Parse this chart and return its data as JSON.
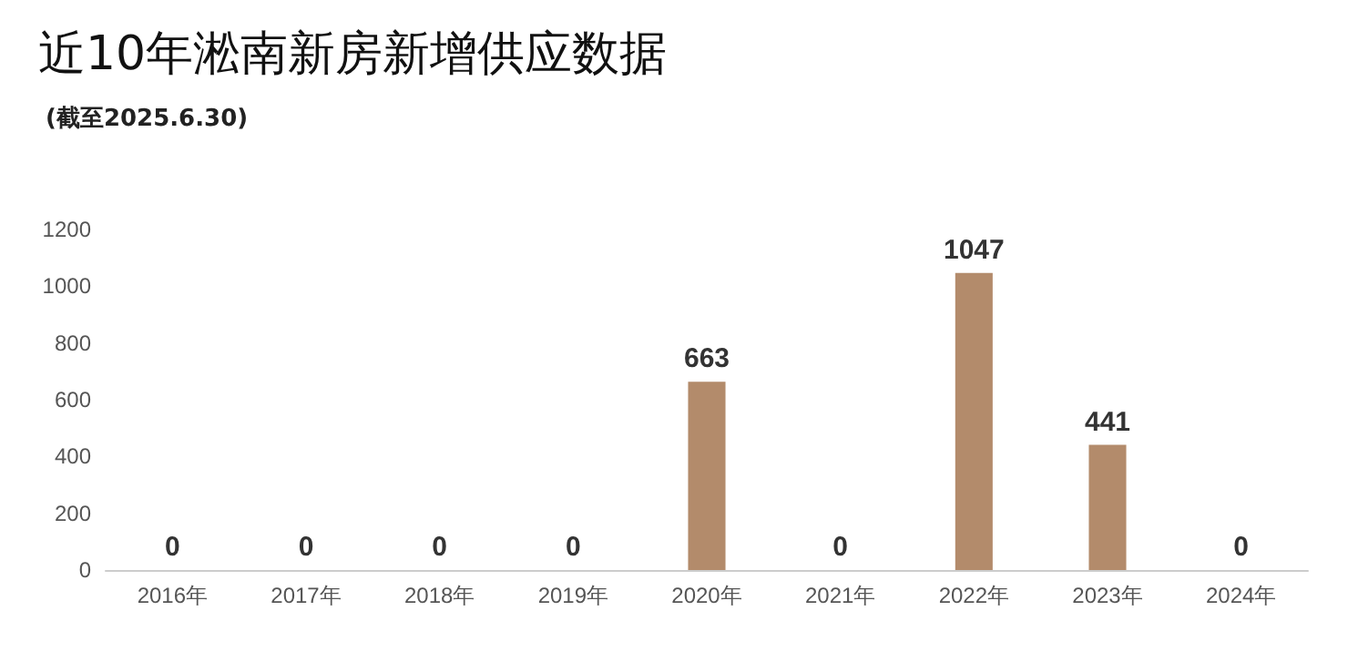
{
  "chart_data": {
    "type": "bar",
    "title": "近10年淞南新房新增供应数据",
    "subtitle": "(截至2025.6.30)",
    "categories": [
      "2016年",
      "2017年",
      "2018年",
      "2019年",
      "2020年",
      "2021年",
      "2022年",
      "2023年",
      "2024年"
    ],
    "values": [
      0,
      0,
      0,
      0,
      663,
      0,
      1047,
      441,
      0
    ],
    "color": "#b38b6b",
    "ylim": [
      0,
      1200
    ],
    "yticks": [
      0,
      200,
      400,
      600,
      800,
      1000,
      1200
    ],
    "grid": false,
    "data_labels": true
  }
}
